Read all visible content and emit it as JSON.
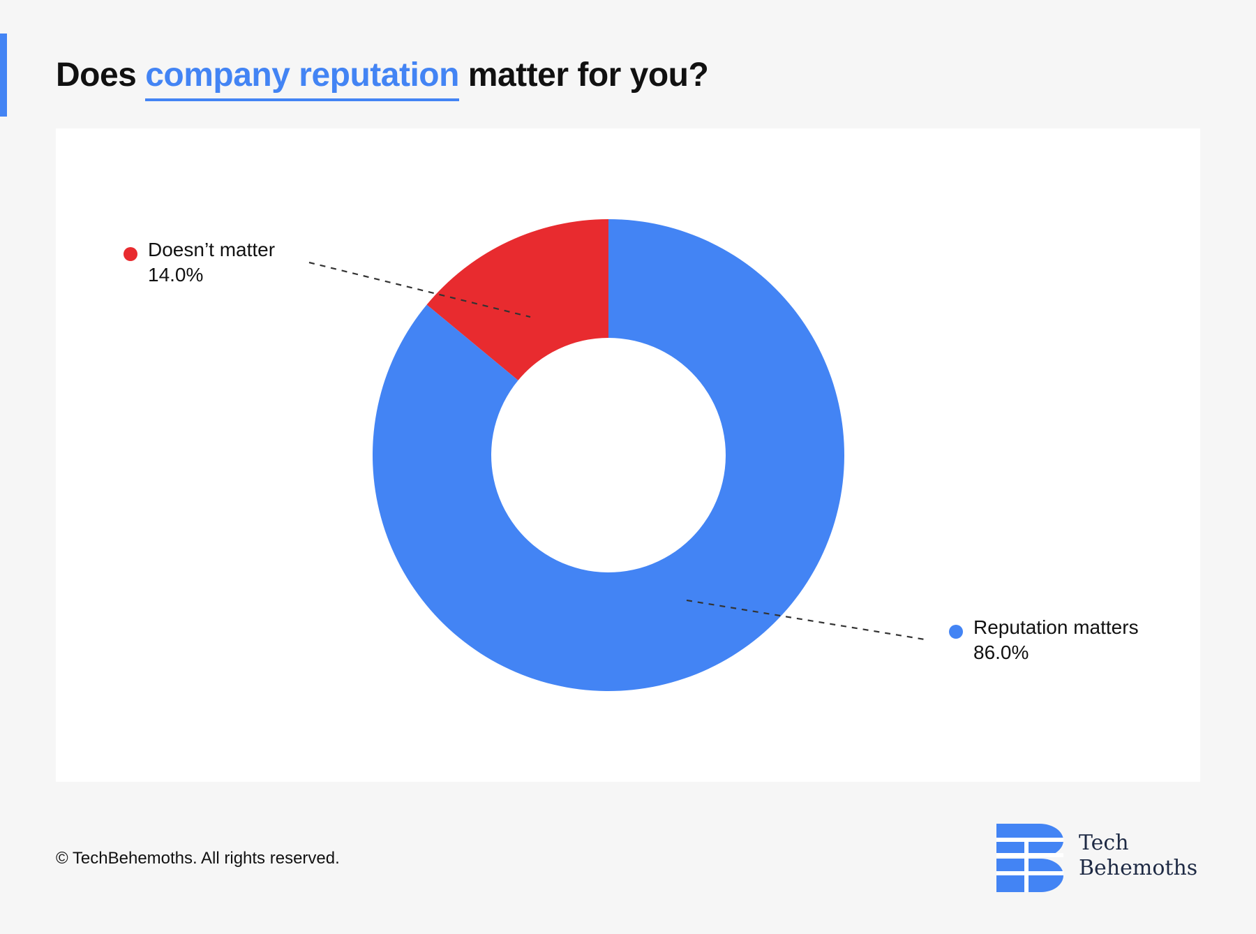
{
  "title": {
    "prefix": "Does ",
    "highlight": "company reputation",
    "suffix": " matter for you?"
  },
  "colors": {
    "accent": "#4384f4",
    "reputation_matters": "#4384f4",
    "doesnt_matter": "#e82b2f",
    "background": "#f6f6f6",
    "card": "#ffffff"
  },
  "chart_data": {
    "type": "pie",
    "style": "donut",
    "title": "Does company reputation matter for you?",
    "slices": [
      {
        "label": "Doesn’t matter",
        "value": 14.0,
        "display": "14.0%",
        "color": "#e82b2f"
      },
      {
        "label": "Reputation matters",
        "value": 86.0,
        "display": "86.0%",
        "color": "#4384f4"
      }
    ],
    "start_angle": "12 o'clock",
    "direction": "counterclockwise from top for first slice",
    "legend": "callouts with leader lines"
  },
  "footer": {
    "copyright": "© TechBehemoths. All rights reserved."
  },
  "logo": {
    "icon": "techbehemoths-b-logo",
    "line1": "Tech",
    "line2": "Behemoths"
  }
}
